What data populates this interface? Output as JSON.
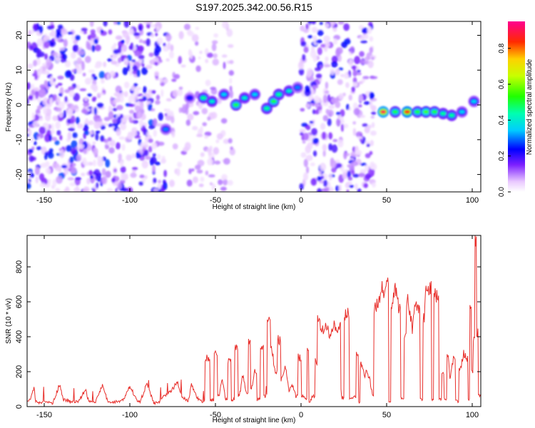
{
  "title": "S197.2025.342.00.56.R15",
  "chart_data": [
    {
      "type": "heatmap",
      "xlabel": "Height of straight line (km)",
      "ylabel": "Frequency (Hz)",
      "xlim": [
        -160,
        105
      ],
      "ylim": [
        -25,
        24
      ],
      "xticks": [
        -150,
        -100,
        -50,
        0,
        50,
        100
      ],
      "yticks": [
        -20,
        -10,
        0,
        10,
        20
      ],
      "colorbar": {
        "label": "Normalized spectral amplitude",
        "range": [
          0,
          0.95
        ],
        "ticks": [
          0.0,
          0.2,
          0.4,
          0.6,
          0.8
        ],
        "tick_labels": [
          "0.0",
          "0.2",
          "0.4",
          "0.6",
          "0.8"
        ]
      },
      "regions": [
        {
          "name": "noise",
          "x": [
            -160,
            -78
          ],
          "y": [
            -25,
            24
          ],
          "amp": 0.25
        },
        {
          "name": "noise",
          "x": [
            -78,
            -40
          ],
          "y": [
            -25,
            24
          ],
          "amp": 0.1
        },
        {
          "name": "noise",
          "x": [
            0,
            43
          ],
          "y": [
            -25,
            24
          ],
          "amp": 0.22
        }
      ],
      "features": [
        {
          "x": -79,
          "y": -7,
          "amp": 0.3
        },
        {
          "x": -65,
          "y": 2,
          "amp": 0.25
        },
        {
          "x": -57,
          "y": 2,
          "amp": 0.45
        },
        {
          "x": -52,
          "y": 1,
          "amp": 0.4
        },
        {
          "x": -45,
          "y": 3,
          "amp": 0.35
        },
        {
          "x": -38,
          "y": 0,
          "amp": 0.5
        },
        {
          "x": -33,
          "y": 2,
          "amp": 0.4
        },
        {
          "x": -27,
          "y": 3,
          "amp": 0.35
        },
        {
          "x": -20,
          "y": -1,
          "amp": 0.45
        },
        {
          "x": -16,
          "y": 1,
          "amp": 0.5
        },
        {
          "x": -13,
          "y": 3,
          "amp": 0.45
        },
        {
          "x": -7,
          "y": 4,
          "amp": 0.4
        },
        {
          "x": -2,
          "y": 5,
          "amp": 0.3
        },
        {
          "x": 48,
          "y": -2,
          "amp": 0.9
        },
        {
          "x": 55,
          "y": -2,
          "amp": 0.5
        },
        {
          "x": 62,
          "y": -2,
          "amp": 0.85
        },
        {
          "x": 68,
          "y": -2,
          "amp": 0.5
        },
        {
          "x": 73,
          "y": -2,
          "amp": 0.55
        },
        {
          "x": 78,
          "y": -2,
          "amp": 0.5
        },
        {
          "x": 83,
          "y": -2.5,
          "amp": 0.45
        },
        {
          "x": 88,
          "y": -3,
          "amp": 0.45
        },
        {
          "x": 94,
          "y": -2,
          "amp": 0.35
        },
        {
          "x": 101,
          "y": 1,
          "amp": 0.35
        }
      ]
    },
    {
      "type": "line",
      "xlabel": "Height of straight line (km)",
      "ylabel": "SNR (10 * v/v)",
      "xlim": [
        -160,
        105
      ],
      "ylim": [
        0,
        980
      ],
      "xticks": [
        -150,
        -100,
        -50,
        0,
        50,
        100
      ],
      "yticks": [
        0,
        200,
        400,
        600,
        800
      ],
      "color": "#e8302c",
      "series": [
        {
          "name": "SNR",
          "x": [
            -160,
            -158,
            -156,
            -155,
            -153,
            -150,
            -145,
            -141,
            -139,
            -135,
            -130,
            -126,
            -124,
            -120,
            -116,
            -113,
            -110,
            -104,
            -100,
            -96,
            -94,
            -90,
            -86,
            -82,
            -80,
            -76,
            -72,
            -70,
            -66,
            -64,
            -60,
            -58,
            -55,
            -52,
            -50,
            -48,
            -46,
            -44,
            -42,
            -40,
            -38,
            -36,
            -34,
            -32,
            -30,
            -29,
            -27,
            -25,
            -23,
            -21,
            -19,
            -17,
            -15,
            -13,
            -11,
            -9,
            -7,
            -5,
            -3,
            -1,
            1,
            3,
            4,
            5,
            7,
            9,
            10,
            11,
            12,
            15,
            17,
            19,
            20,
            22,
            24,
            26,
            27,
            29,
            31,
            33,
            34,
            35,
            37,
            38,
            40,
            42,
            43,
            45,
            47,
            48,
            50,
            52,
            53,
            55,
            56,
            57,
            59,
            61,
            62,
            64,
            65,
            67,
            69,
            70,
            72,
            73,
            75,
            77,
            78,
            80,
            81,
            83,
            84,
            86,
            87,
            89,
            91,
            93,
            95,
            97,
            98,
            99,
            100,
            101,
            102,
            103,
            104,
            105
          ],
          "values": [
            30,
            50,
            110,
            30,
            20,
            25,
            20,
            130,
            40,
            30,
            25,
            100,
            30,
            25,
            130,
            30,
            25,
            35,
            120,
            40,
            30,
            130,
            20,
            30,
            60,
            90,
            140,
            60,
            30,
            120,
            40,
            30,
            280,
            40,
            310,
            60,
            150,
            40,
            260,
            40,
            350,
            60,
            180,
            80,
            370,
            100,
            200,
            40,
            330,
            60,
            490,
            320,
            200,
            380,
            160,
            230,
            90,
            120,
            60,
            280,
            60,
            40,
            330,
            30,
            60,
            260,
            520,
            480,
            430,
            460,
            390,
            490,
            420,
            470,
            50,
            520,
            540,
            40,
            60,
            300,
            20,
            260,
            170,
            200,
            160,
            60,
            570,
            590,
            680,
            660,
            690,
            30,
            590,
            680,
            640,
            560,
            50,
            420,
            620,
            520,
            450,
            600,
            560,
            40,
            520,
            660,
            680,
            40,
            630,
            650,
            40,
            200,
            40,
            300,
            150,
            270,
            30,
            210,
            300,
            280,
            40,
            600,
            200,
            380,
            980,
            430,
            60,
            60
          ]
        }
      ]
    }
  ]
}
